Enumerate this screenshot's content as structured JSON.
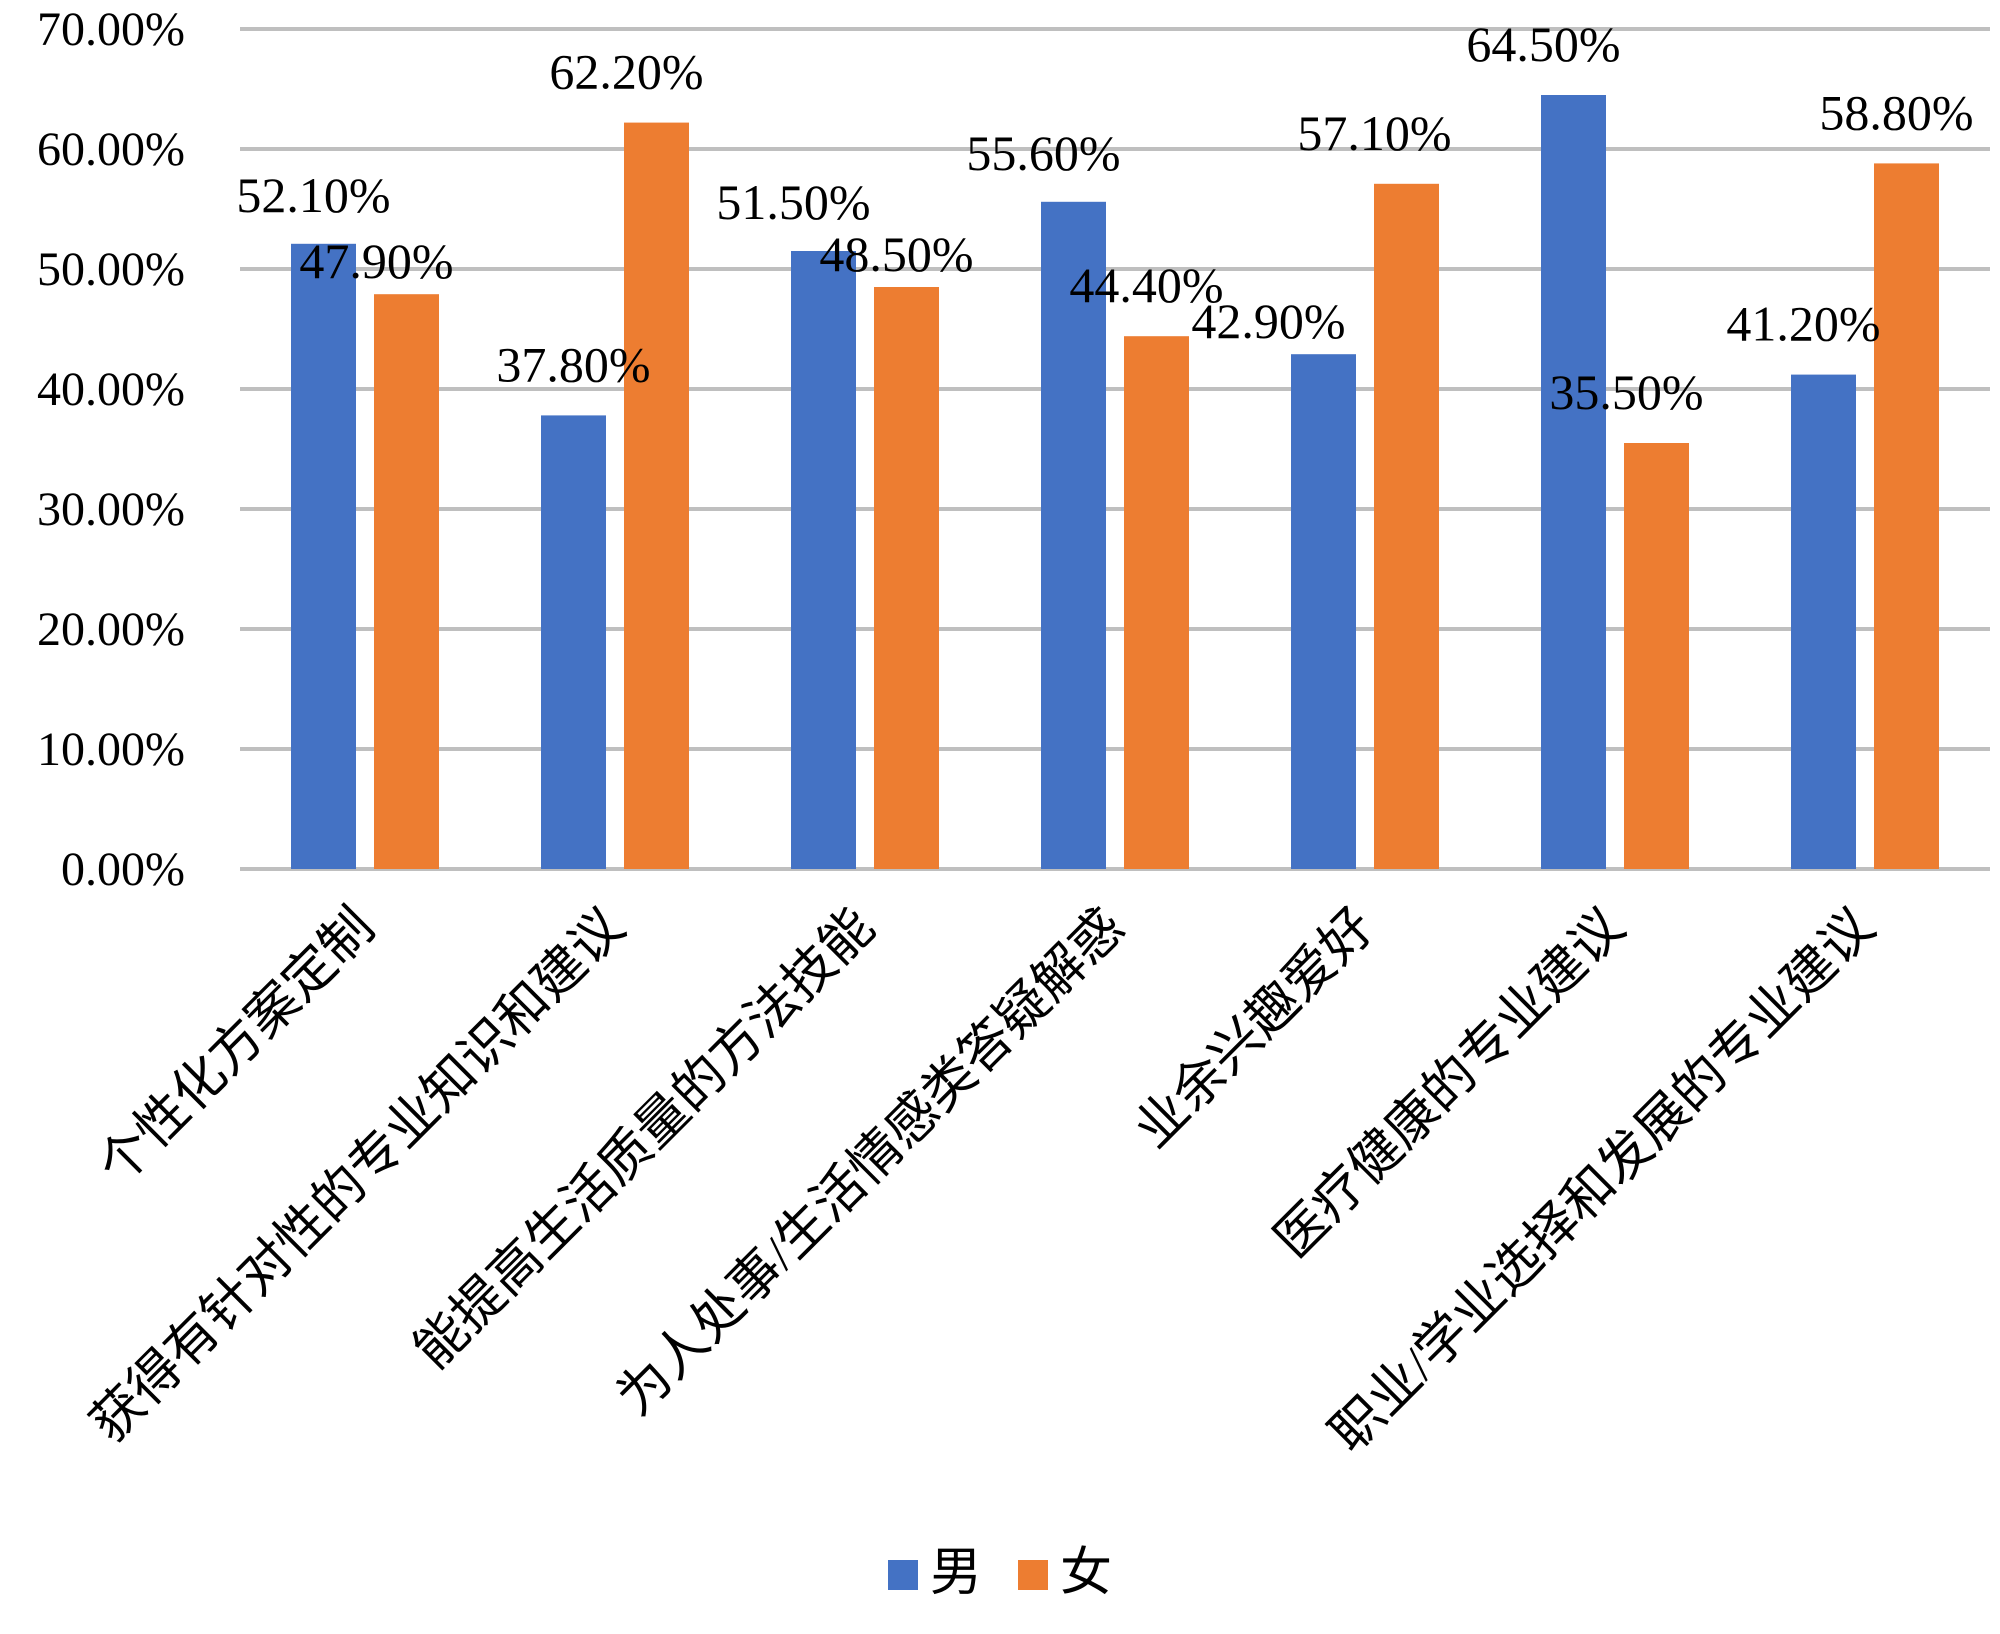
{
  "chart_data": {
    "type": "bar",
    "title": "",
    "xlabel": "",
    "ylabel": "",
    "ylim": [
      0,
      70
    ],
    "ytick_step": 10,
    "ytick_format": "percent_2dp",
    "grid": true,
    "legend_position": "bottom",
    "categories": [
      "个性化方案定制",
      "获得有针对性的专业知识和建议",
      "能提高生活质量的方法技能",
      "为人处事/生活情感类答疑解惑",
      "业余兴趣爱好",
      "医疗健康的专业建议",
      "职业/学业选择和发展的专业建议"
    ],
    "series": [
      {
        "name": "男",
        "color": "#4472C4",
        "values": [
          52.1,
          37.8,
          51.5,
          55.6,
          42.9,
          64.5,
          41.2
        ],
        "labels": [
          "52.10%",
          "37.80%",
          "51.50%",
          "55.60%",
          "42.90%",
          "64.50%",
          "41.20%"
        ]
      },
      {
        "name": "女",
        "color": "#ED7D31",
        "values": [
          47.9,
          62.2,
          48.5,
          44.4,
          57.1,
          35.5,
          58.8
        ],
        "labels": [
          "47.90%",
          "62.20%",
          "48.50%",
          "44.40%",
          "57.10%",
          "35.50%",
          "58.80%"
        ]
      }
    ],
    "ytick_labels": [
      "0.00%",
      "10.00%",
      "20.00%",
      "30.00%",
      "40.00%",
      "50.00%",
      "60.00%",
      "70.00%"
    ],
    "colors": {
      "grid": "#BFBFBF",
      "text": "#000000"
    }
  }
}
